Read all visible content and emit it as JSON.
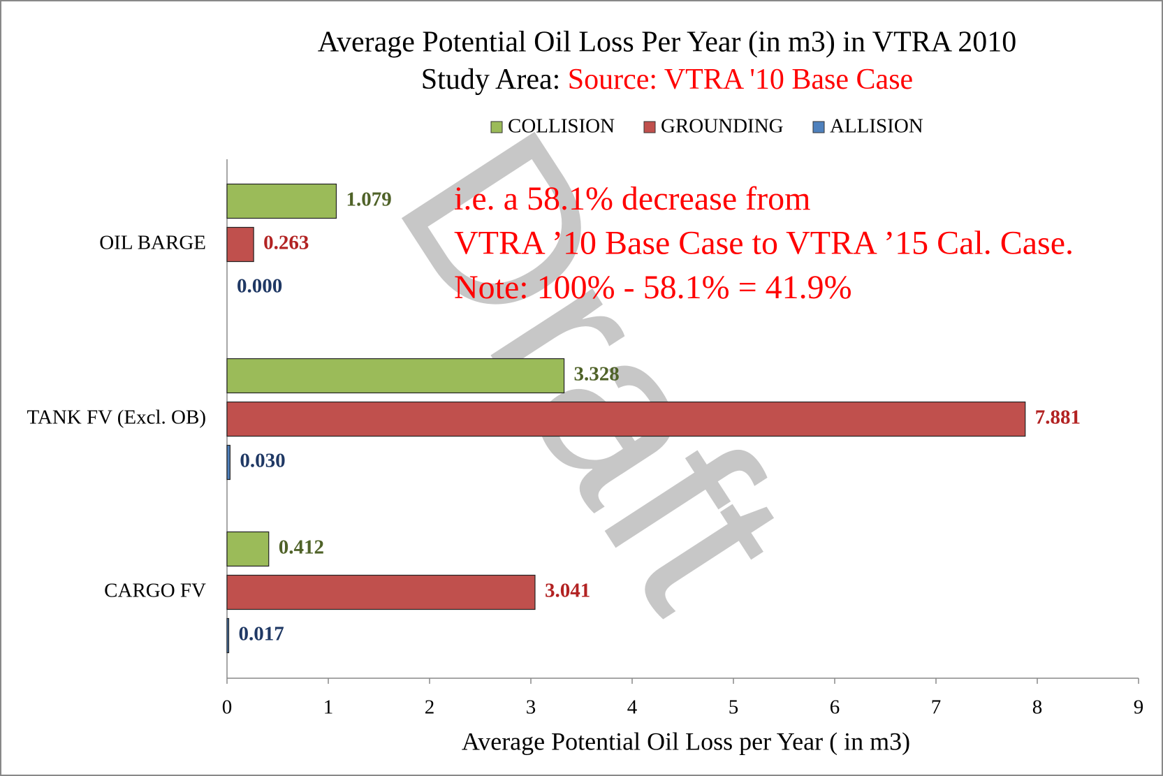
{
  "chart_data": {
    "type": "hbar",
    "title": "Average Potential Oil Loss Per Year (in m3) in VTRA 2010",
    "subtitle": "Study Area:",
    "source": "Source: VTRA '10 Base Case",
    "annotations": [
      "i.e. a 58.1% decrease from",
      "VTRA ’10 Base Case to VTRA ’15 Cal. Case.",
      "Note: 100% - 58.1% = 41.9%"
    ],
    "watermark": "Draft",
    "xlabel": "Average Potential Oil Loss per Year ( in m3)",
    "categories": [
      "OIL BARGE",
      "TANK FV (Excl. OB)",
      "CARGO FV"
    ],
    "series": [
      {
        "name": "COLLISION",
        "color": "#9bbb59",
        "values": [
          1.079,
          3.328,
          0.412
        ],
        "value_labels": [
          "1.079",
          "3.328",
          "0.412"
        ]
      },
      {
        "name": "GROUNDING",
        "color": "#c0504d",
        "values": [
          0.263,
          7.881,
          3.041
        ],
        "value_labels": [
          "0.263",
          "7.881",
          "3.041"
        ]
      },
      {
        "name": "ALLISION",
        "color": "#4f81bd",
        "values": [
          0,
          0.03,
          0.017
        ],
        "value_labels": [
          "0.000",
          "0.030",
          "0.017"
        ]
      }
    ],
    "xlim": [
      0,
      9
    ],
    "xticks": [
      0,
      1,
      2,
      3,
      4,
      5,
      6,
      7,
      8,
      9
    ],
    "legend": "top"
  }
}
